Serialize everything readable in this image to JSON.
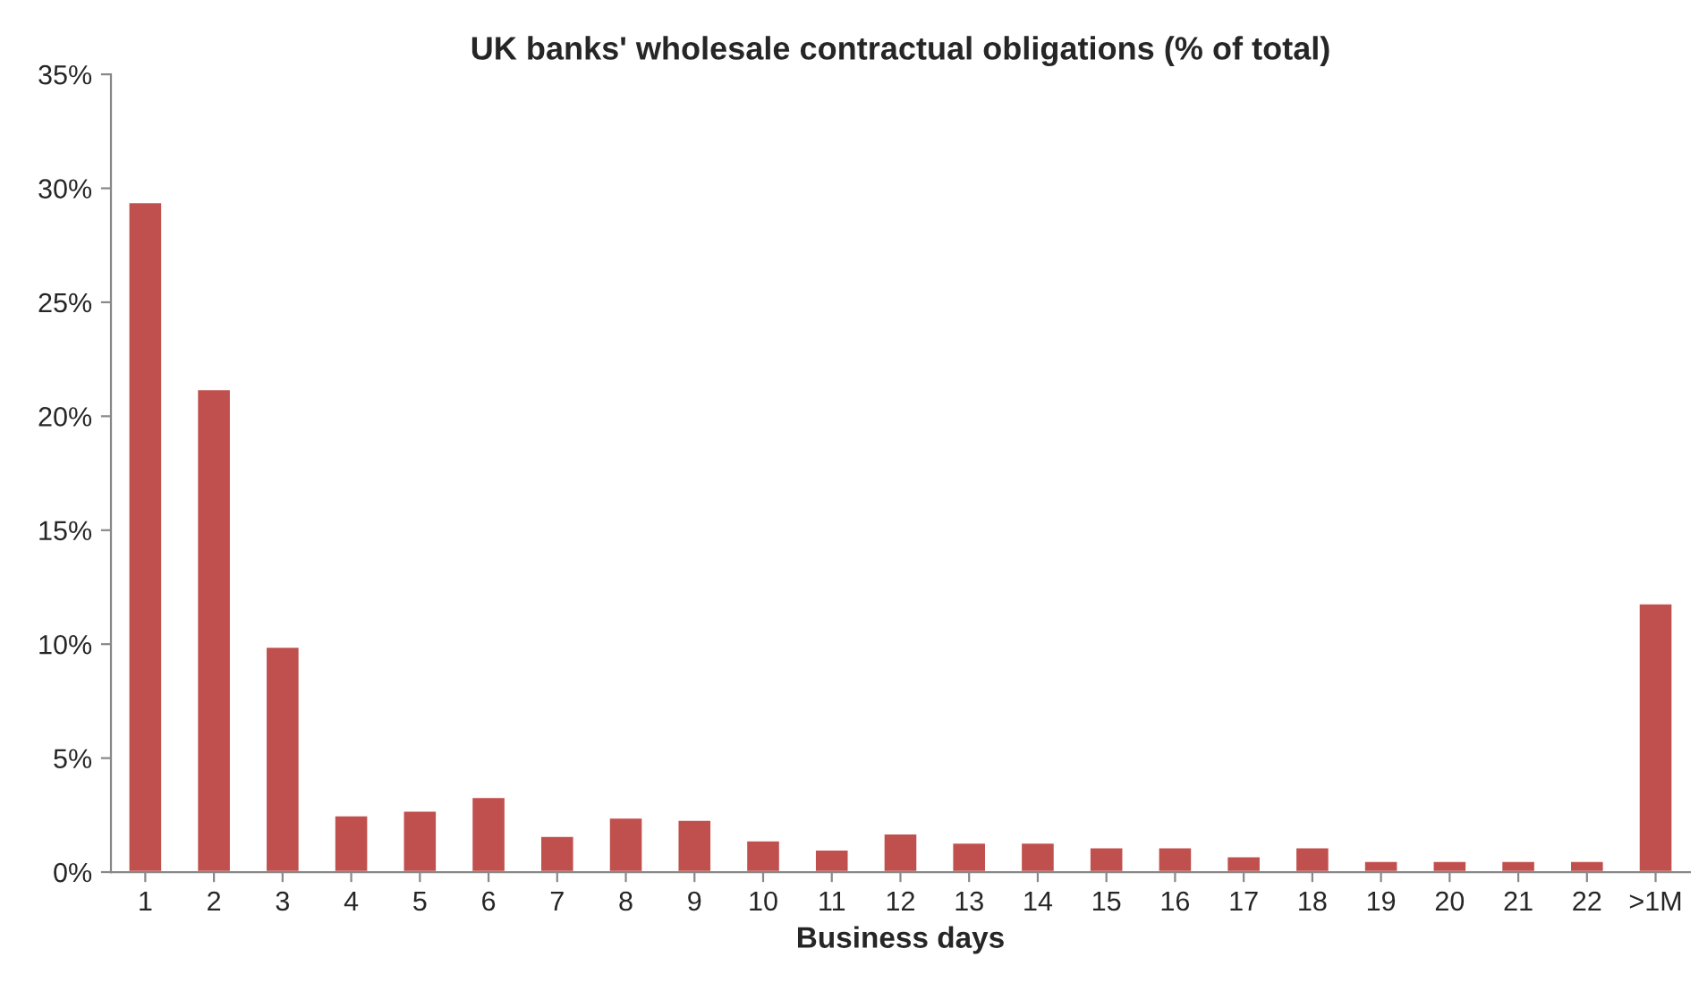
{
  "chart_data": {
    "type": "bar",
    "title": "UK banks' wholesale contractual obligations (% of total)",
    "xlabel": "Business days",
    "categories": [
      "1",
      "2",
      "3",
      "4",
      "5",
      "6",
      "7",
      "8",
      "9",
      "10",
      "11",
      "12",
      "13",
      "14",
      "15",
      "16",
      "17",
      "18",
      "19",
      "20",
      "21",
      "22",
      ">1M"
    ],
    "values": [
      29.4,
      21.2,
      9.9,
      2.5,
      2.7,
      3.3,
      1.6,
      2.4,
      2.3,
      1.4,
      1.0,
      1.7,
      1.3,
      1.3,
      1.1,
      1.1,
      0.7,
      1.1,
      0.5,
      0.5,
      0.5,
      0.5,
      11.8
    ],
    "color": "#c0504d",
    "ylim": [
      0,
      35
    ],
    "yticks": [
      {
        "value": 0,
        "label": "0%"
      },
      {
        "value": 5,
        "label": "5%"
      },
      {
        "value": 10,
        "label": "10%"
      },
      {
        "value": 15,
        "label": "15%"
      },
      {
        "value": 20,
        "label": "20%"
      },
      {
        "value": 25,
        "label": "25%"
      },
      {
        "value": 30,
        "label": "30%"
      },
      {
        "value": 35,
        "label": "35%"
      }
    ],
    "grid": false,
    "legend": false
  }
}
